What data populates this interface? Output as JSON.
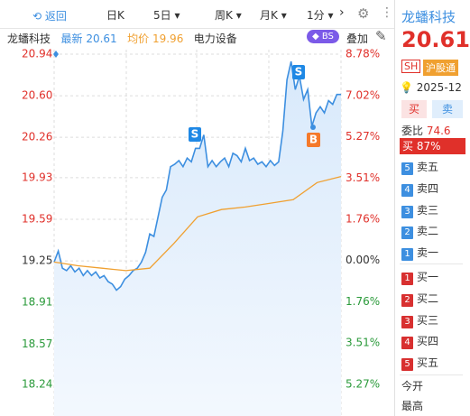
{
  "toolbar": {
    "back": "返回",
    "periods": [
      "日K",
      "5日",
      "周K",
      "月K",
      "1分"
    ]
  },
  "info": {
    "name": "龙蟠科技",
    "latest_label": "最新",
    "latest": "20.61",
    "avg_label": "均价",
    "avg": "19.96",
    "sector": "电力设备",
    "bs": "BS",
    "overlay": "叠加"
  },
  "chart": {
    "type": "line",
    "ylim": [
      18.24,
      20.94
    ],
    "y2lim": [
      -5.27,
      8.78
    ],
    "yticks": [
      {
        "value": 20.94,
        "label": "20.94"
      },
      {
        "value": 20.6,
        "label": "20.60"
      },
      {
        "value": 20.26,
        "label": "20.26"
      },
      {
        "value": 19.93,
        "label": "19.93"
      },
      {
        "value": 19.59,
        "label": "19.59"
      },
      {
        "value": 19.25,
        "label": "19.25"
      },
      {
        "value": 18.91,
        "label": "18.91"
      },
      {
        "value": 18.57,
        "label": "18.57"
      },
      {
        "value": 18.24,
        "label": "18.24"
      }
    ],
    "y2ticks": [
      {
        "value": 8.78,
        "label": "8.78%"
      },
      {
        "value": 7.02,
        "label": "7.02%"
      },
      {
        "value": 5.27,
        "label": "5.27%"
      },
      {
        "value": 3.51,
        "label": "3.51%"
      },
      {
        "value": 1.76,
        "label": "1.76%"
      },
      {
        "value": 0,
        "label": "0.00%"
      },
      {
        "value": -1.76,
        "label": "1.76%"
      },
      {
        "value": -3.51,
        "label": "3.51%"
      },
      {
        "value": -5.27,
        "label": "5.27%"
      }
    ],
    "up_color": "#e0302a",
    "down_color": "#2a9a3a",
    "flat_color": "#333333",
    "series": [
      {
        "color": "#3d8fe0",
        "values": [
          19.24,
          19.33,
          19.19,
          19.17,
          19.21,
          19.16,
          19.19,
          19.13,
          19.17,
          19.13,
          19.16,
          19.11,
          19.13,
          19.08,
          19.06,
          19.01,
          19.04,
          19.1,
          19.13,
          19.17,
          19.19,
          19.24,
          19.32,
          19.47,
          19.45,
          19.61,
          19.77,
          19.83,
          20.02,
          20.04,
          20.07,
          20.02,
          20.09,
          20.06,
          20.17,
          20.17,
          20.28,
          20.02,
          20.07,
          20.02,
          20.06,
          20.09,
          20.02,
          20.13,
          20.11,
          20.06,
          20.17,
          20.07,
          20.09,
          20.04,
          20.06,
          20.02,
          20.07,
          20.03,
          20.06,
          20.31,
          20.73,
          20.88,
          20.65,
          20.76,
          20.57,
          20.65,
          20.35,
          20.46,
          20.51,
          20.46,
          20.56,
          20.53,
          20.61,
          20.61
        ]
      },
      {
        "color": "#f0a030",
        "values": [
          19.24,
          19.21,
          19.19,
          19.17,
          19.19,
          19.39,
          19.61,
          19.67,
          19.69,
          19.72,
          19.75,
          19.89,
          19.94
        ]
      }
    ],
    "signals": [
      "S",
      "S",
      "B"
    ]
  },
  "panel": {
    "name": "龙蟠科技",
    "price": "20.61",
    "market": "SH",
    "connect": "沪股通",
    "date": "2025-12",
    "buy": "买",
    "sell": "卖",
    "ratio_label": "委比",
    "ratio": "74.6",
    "buy_pct": "买 87%",
    "asks": [
      {
        "n": "5",
        "label": "卖五"
      },
      {
        "n": "4",
        "label": "卖四"
      },
      {
        "n": "3",
        "label": "卖三"
      },
      {
        "n": "2",
        "label": "卖二"
      },
      {
        "n": "1",
        "label": "卖一"
      }
    ],
    "bids": [
      {
        "n": "1",
        "label": "买一"
      },
      {
        "n": "2",
        "label": "买二"
      },
      {
        "n": "3",
        "label": "买三"
      },
      {
        "n": "4",
        "label": "买四"
      },
      {
        "n": "5",
        "label": "买五"
      }
    ],
    "open": "今开",
    "high": "最高"
  }
}
